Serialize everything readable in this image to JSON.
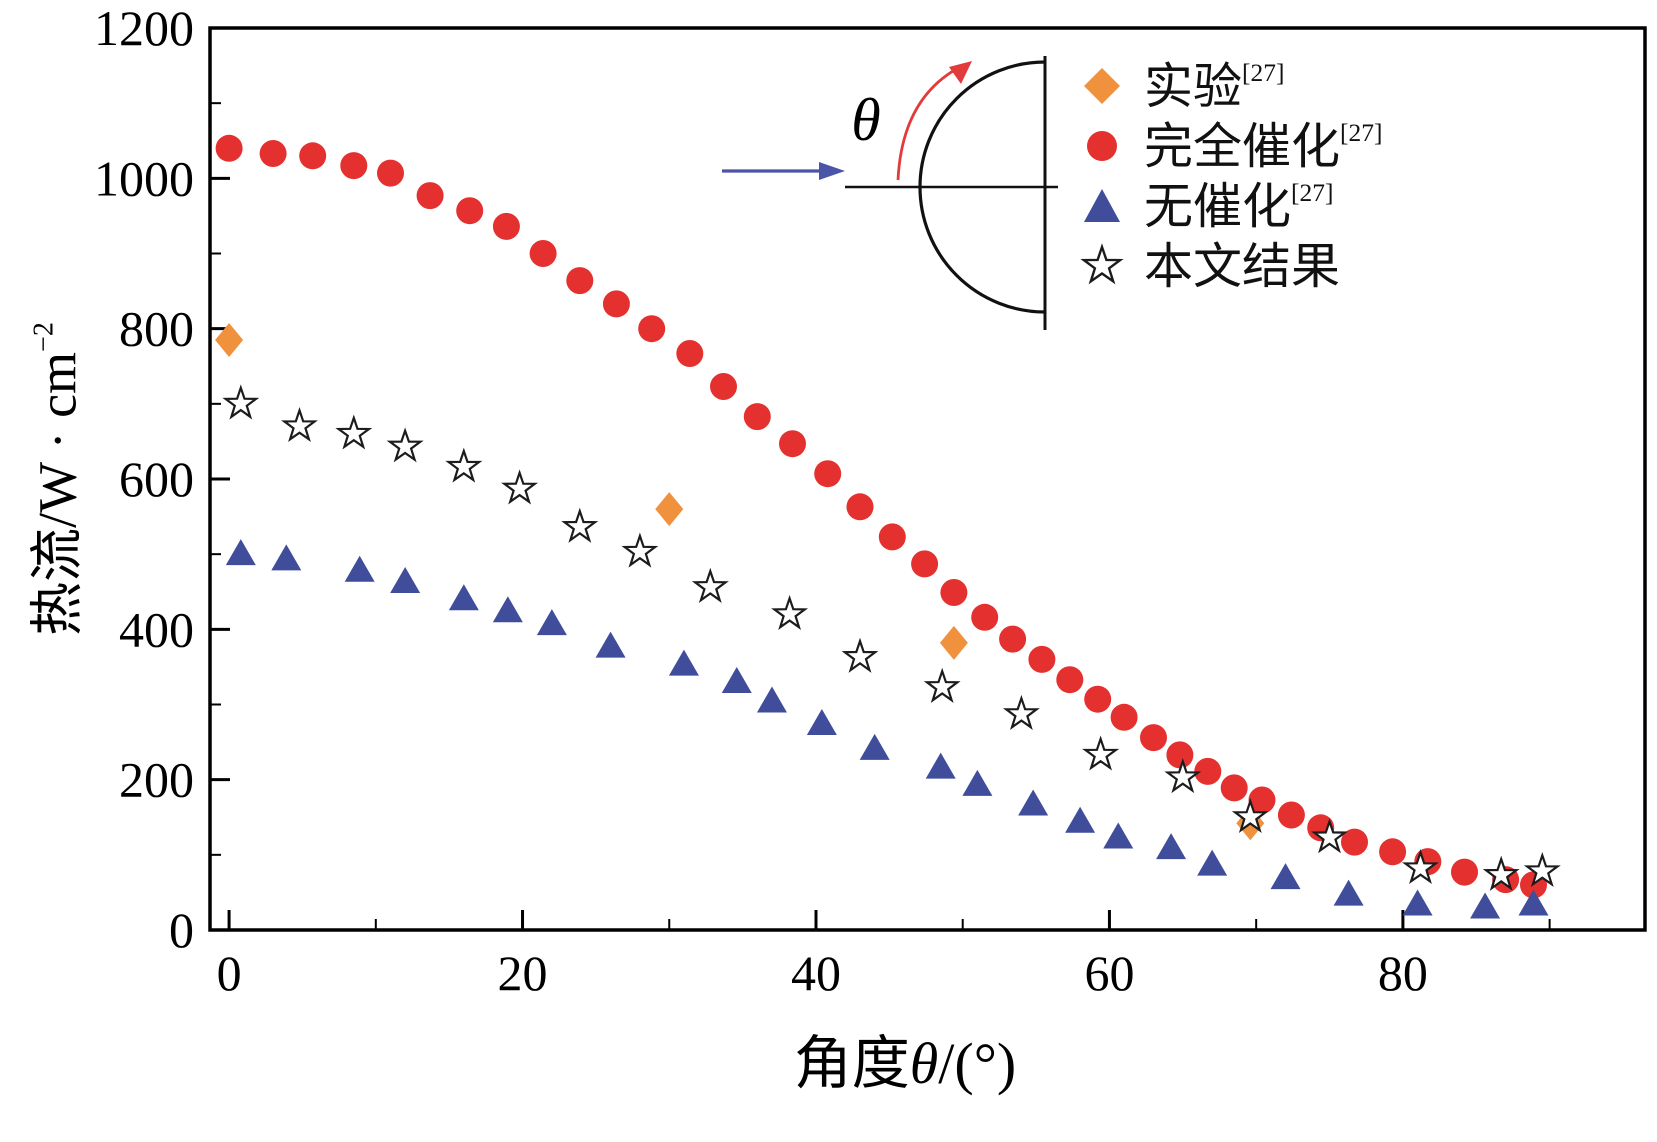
{
  "figure": {
    "background": "#ffffff"
  },
  "axes": {
    "x": {
      "title_prefix": "角度",
      "title_theta": "θ",
      "title_suffix": "/(°)",
      "ticks": [
        0,
        20,
        40,
        60,
        80
      ],
      "minor_step": 10
    },
    "y": {
      "title_main": "热流/W · cm",
      "title_sup": "−2",
      "ticks": [
        0,
        200,
        400,
        600,
        800,
        1000,
        1200
      ],
      "minor_step": 100
    }
  },
  "legend": {
    "items": [
      {
        "label": "实验",
        "sup": "[27]",
        "marker": "diamond",
        "color": "#f0913d"
      },
      {
        "label": "完全催化",
        "sup": "[27]",
        "marker": "circle",
        "color": "#e53030"
      },
      {
        "label": "无催化",
        "sup": "[27]",
        "marker": "triangle",
        "color": "#3f4d9b"
      },
      {
        "label": "本文结果",
        "sup": "",
        "marker": "star",
        "color": "#1c1c1c"
      }
    ]
  },
  "inset": {
    "theta_label": "θ"
  },
  "chart_data": {
    "type": "scatter",
    "title": "",
    "xlabel": "角度θ/(°)",
    "ylabel": "热流/W · cm⁻²",
    "xlim": [
      -1.3,
      96.5
    ],
    "ylim": [
      0,
      1200
    ],
    "x_ticks": [
      0,
      20,
      40,
      60,
      80
    ],
    "y_ticks": [
      0,
      200,
      400,
      600,
      800,
      1000,
      1200
    ],
    "grid": false,
    "legend_position": "upper right",
    "series": [
      {
        "name": "实验[27]",
        "marker": "diamond",
        "color": "#f0913d",
        "points": [
          [
            0,
            785
          ],
          [
            30,
            560
          ],
          [
            49.4,
            382
          ],
          [
            69.6,
            142
          ]
        ]
      },
      {
        "name": "完全催化[27]",
        "marker": "circle",
        "color": "#e53030",
        "points": [
          [
            0,
            1040
          ],
          [
            3,
            1033
          ],
          [
            5.7,
            1030
          ],
          [
            8.5,
            1017
          ],
          [
            11,
            1007
          ],
          [
            13.7,
            977
          ],
          [
            16.4,
            957
          ],
          [
            18.9,
            936
          ],
          [
            21.4,
            900
          ],
          [
            23.9,
            864
          ],
          [
            26.4,
            833
          ],
          [
            28.8,
            800
          ],
          [
            31.4,
            767
          ],
          [
            33.7,
            723
          ],
          [
            36,
            683
          ],
          [
            38.4,
            647
          ],
          [
            40.8,
            607
          ],
          [
            43,
            563
          ],
          [
            45.2,
            523
          ],
          [
            47.4,
            487
          ],
          [
            49.4,
            449
          ],
          [
            51.5,
            416
          ],
          [
            53.4,
            387
          ],
          [
            55.4,
            360
          ],
          [
            57.3,
            333
          ],
          [
            59.2,
            307
          ],
          [
            61,
            283
          ],
          [
            63,
            256
          ],
          [
            64.8,
            233
          ],
          [
            66.7,
            211
          ],
          [
            68.5,
            189
          ],
          [
            70.4,
            173
          ],
          [
            72.4,
            153
          ],
          [
            74.4,
            136
          ],
          [
            76.7,
            117
          ],
          [
            79.3,
            104
          ],
          [
            81.7,
            91
          ],
          [
            84.2,
            77
          ],
          [
            87,
            67
          ],
          [
            88.9,
            60
          ]
        ]
      },
      {
        "name": "无催化[27]",
        "marker": "triangle",
        "color": "#3f4d9b",
        "points": [
          [
            0.8,
            500
          ],
          [
            3.9,
            493
          ],
          [
            8.9,
            478
          ],
          [
            12,
            463
          ],
          [
            16,
            440
          ],
          [
            19,
            424
          ],
          [
            22,
            407
          ],
          [
            26,
            377
          ],
          [
            31,
            353
          ],
          [
            34.6,
            330
          ],
          [
            37,
            304
          ],
          [
            40.4,
            274
          ],
          [
            44,
            241
          ],
          [
            48.5,
            216
          ],
          [
            51,
            193
          ],
          [
            54.8,
            167
          ],
          [
            58,
            144
          ],
          [
            60.6,
            123
          ],
          [
            64.2,
            109
          ],
          [
            67,
            87
          ],
          [
            72,
            69
          ],
          [
            76.3,
            47
          ],
          [
            81,
            34
          ],
          [
            85.6,
            30
          ],
          [
            88.9,
            34
          ]
        ]
      },
      {
        "name": "本文结果",
        "marker": "star",
        "color": "#ffffff",
        "stroke": "#1c1c1c",
        "points": [
          [
            0.8,
            700
          ],
          [
            4.8,
            670
          ],
          [
            8.5,
            660
          ],
          [
            12,
            643
          ],
          [
            16,
            616
          ],
          [
            19.8,
            587
          ],
          [
            23.9,
            536
          ],
          [
            28,
            503
          ],
          [
            32.8,
            456
          ],
          [
            38.2,
            420
          ],
          [
            43,
            363
          ],
          [
            48.6,
            323
          ],
          [
            54,
            287
          ],
          [
            59.4,
            233
          ],
          [
            65,
            203
          ],
          [
            69.6,
            150
          ],
          [
            75,
            123
          ],
          [
            81.2,
            82
          ],
          [
            86.7,
            73
          ],
          [
            89.5,
            78
          ]
        ]
      }
    ]
  }
}
